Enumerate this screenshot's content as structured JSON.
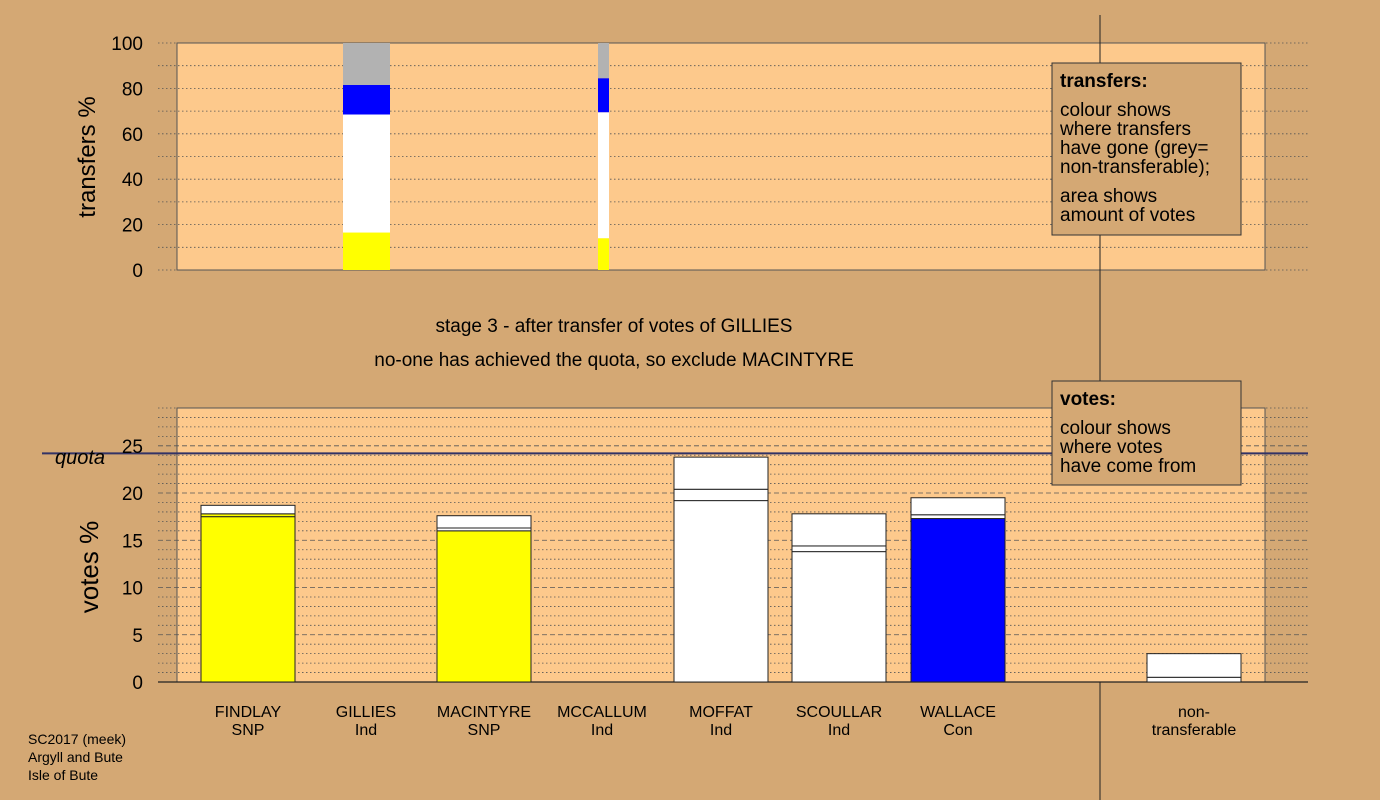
{
  "colors": {
    "background": "#d4a874",
    "plot_area": "#fdc98c",
    "SNP": "#ffff00",
    "Con": "#0000ff",
    "Ind": "#ffffff",
    "non_transferable": "#b2b2b2",
    "quota_line": "#333366"
  },
  "caption": {
    "line1": "stage 3 - after transfer of votes of GILLIES",
    "line2": "no-one has achieved the quota, so exclude MACINTYRE"
  },
  "footer": {
    "line1": "SC2017 (meek)",
    "line2": "Argyll and Bute",
    "line3": "Isle of Bute"
  },
  "legends": {
    "transfers": {
      "title": "transfers:",
      "lines1": [
        "colour shows",
        "where transfers",
        "have gone (grey=",
        "non-transferable);"
      ],
      "lines2": [
        "area shows",
        "amount of votes"
      ]
    },
    "votes": {
      "title": "votes:",
      "lines": [
        "colour shows",
        "where votes",
        "have come from"
      ]
    }
  },
  "chart_data": [
    {
      "type": "bar",
      "stacked": true,
      "panel": "transfers",
      "ylabel": "transfers %",
      "ylim": [
        0,
        100
      ],
      "yticks": [
        0,
        20,
        40,
        60,
        80,
        100
      ],
      "grid": "dotted",
      "series_bars": [
        {
          "source": "GILLIES",
          "width": "wide",
          "segments": [
            {
              "party": "SNP",
              "value": 16.5
            },
            {
              "party": "Ind",
              "value": 52
            },
            {
              "party": "Con",
              "value": 13
            },
            {
              "party": "non_transferable",
              "value": 18.5
            }
          ]
        },
        {
          "source": "MCCALLUM",
          "width": "narrow",
          "segments": [
            {
              "party": "SNP",
              "value": 14
            },
            {
              "party": "Ind",
              "value": 55.5
            },
            {
              "party": "Con",
              "value": 15
            },
            {
              "party": "non_transferable",
              "value": 15.5
            }
          ]
        }
      ]
    },
    {
      "type": "bar",
      "stacked": true,
      "panel": "votes",
      "ylabel": "votes %",
      "ylim": [
        0,
        29
      ],
      "yticks": [
        0,
        5,
        10,
        15,
        20,
        25
      ],
      "quota": 24.2,
      "quota_label": "quota",
      "grid": "dashed",
      "categories": [
        {
          "name": "FINDLAY",
          "party": "SNP",
          "segments": [
            {
              "party": "SNP",
              "value": 17.5
            },
            {
              "party": "SNP",
              "value": 0.3
            },
            {
              "party": "Ind",
              "value": 0.9
            }
          ]
        },
        {
          "name": "GILLIES",
          "party": "Ind",
          "segments": []
        },
        {
          "name": "MACINTYRE",
          "party": "SNP",
          "segments": [
            {
              "party": "SNP",
              "value": 16.0
            },
            {
              "party": "Ind",
              "value": 0.3
            },
            {
              "party": "Ind",
              "value": 1.3
            }
          ]
        },
        {
          "name": "MCCALLUM",
          "party": "Ind",
          "segments": []
        },
        {
          "name": "MOFFAT",
          "party": "Ind",
          "segments": [
            {
              "party": "Ind",
              "value": 19.2
            },
            {
              "party": "Ind",
              "value": 1.2
            },
            {
              "party": "Ind",
              "value": 3.4
            }
          ]
        },
        {
          "name": "SCOULLAR",
          "party": "Ind",
          "segments": [
            {
              "party": "Ind",
              "value": 13.8
            },
            {
              "party": "Ind",
              "value": 0.6
            },
            {
              "party": "Ind",
              "value": 3.4
            }
          ]
        },
        {
          "name": "WALLACE",
          "party": "Con",
          "segments": [
            {
              "party": "Con",
              "value": 17.3
            },
            {
              "party": "Ind",
              "value": 0.4
            },
            {
              "party": "Ind",
              "value": 1.8
            }
          ]
        }
      ],
      "non_transferable": {
        "label_line1": "non-",
        "label_line2": "transferable",
        "segments": [
          {
            "party": "Ind",
            "value": 0.5
          },
          {
            "party": "Ind",
            "value": 2.5
          }
        ]
      }
    }
  ]
}
